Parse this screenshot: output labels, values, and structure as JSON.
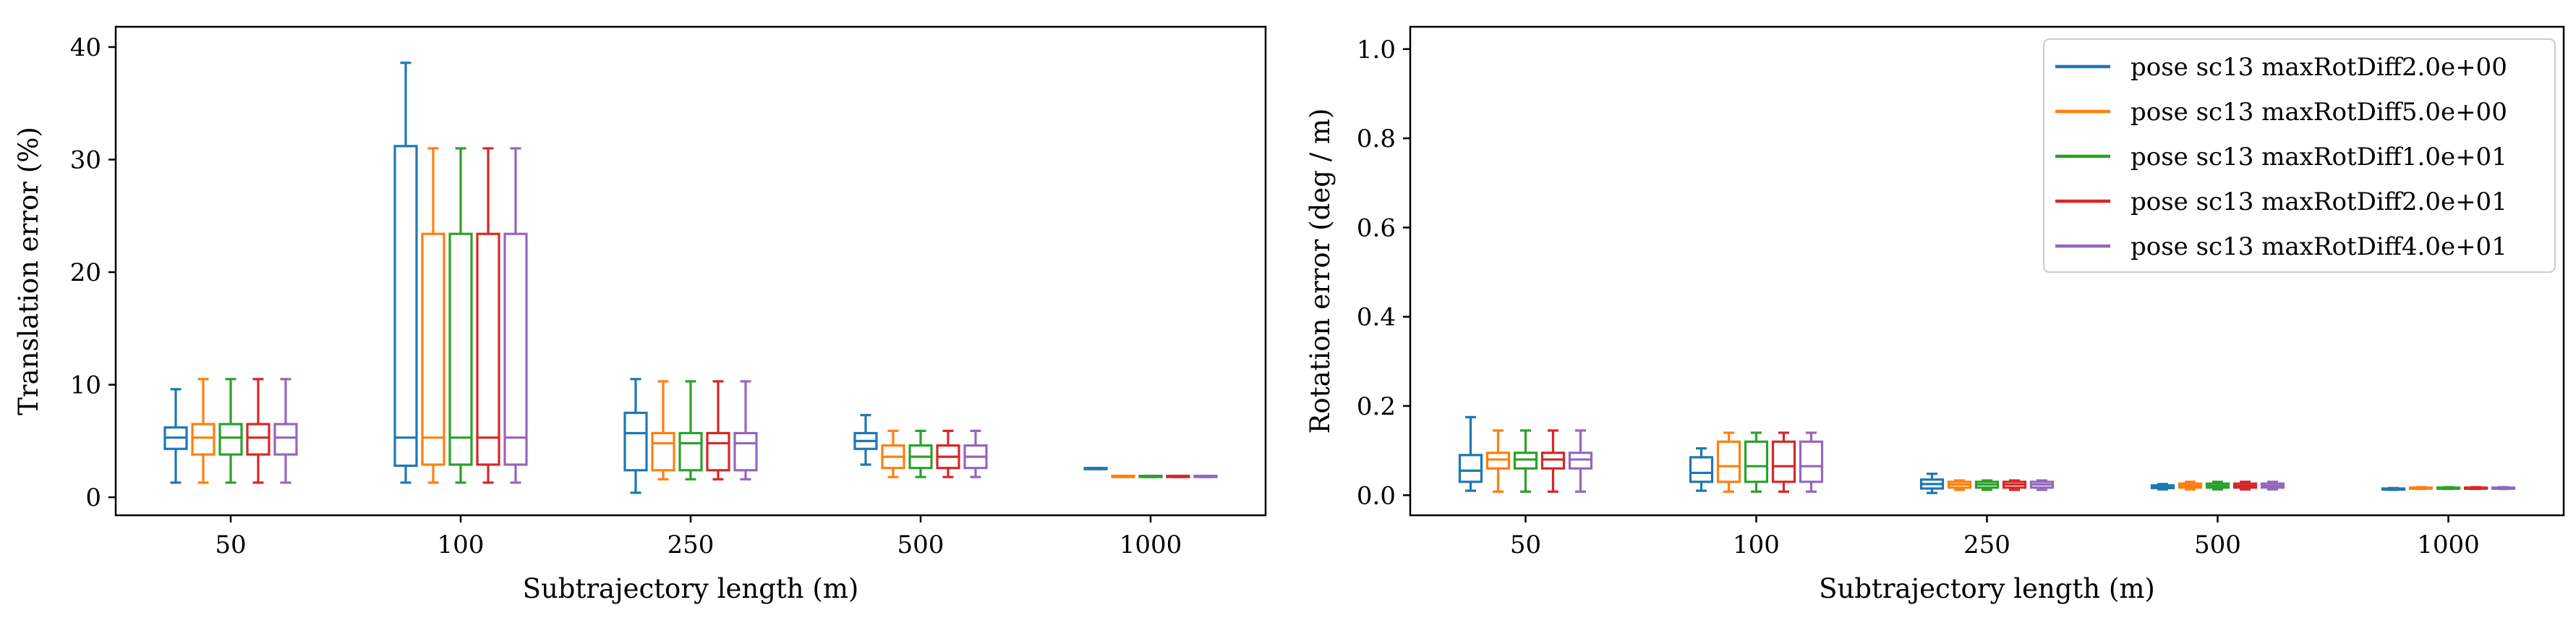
{
  "chart_data": [
    {
      "type": "box",
      "xlabel": "Subtrajectory length (m)",
      "ylabel": "Translation error (%)",
      "ylim": [
        -1.6,
        41.8
      ],
      "yticks": [
        0,
        10,
        20,
        30,
        40
      ],
      "categories": [
        "50",
        "100",
        "250",
        "500",
        "1000"
      ],
      "grid": false,
      "series": [
        {
          "name": "pose sc13 maxRotDiff2.0e+00",
          "color": "#1f77b4",
          "boxes": [
            {
              "whislo": 1.3,
              "q1": 4.3,
              "med": 5.3,
              "q3": 6.2,
              "whishi": 9.6
            },
            {
              "whislo": 1.3,
              "q1": 2.8,
              "med": 5.3,
              "q3": 31.2,
              "whishi": 38.6
            },
            {
              "whislo": 0.4,
              "q1": 2.4,
              "med": 5.7,
              "q3": 7.5,
              "whishi": 10.5
            },
            {
              "whislo": 2.9,
              "q1": 4.3,
              "med": 5.0,
              "q3": 5.7,
              "whishi": 7.3
            },
            {
              "whislo": 2.5,
              "q1": 2.5,
              "med": 2.55,
              "q3": 2.6,
              "whishi": 2.6
            }
          ]
        },
        {
          "name": "pose sc13 maxRotDiff5.0e+00",
          "color": "#ff7f0e",
          "boxes": [
            {
              "whislo": 1.3,
              "q1": 3.8,
              "med": 5.3,
              "q3": 6.5,
              "whishi": 10.5
            },
            {
              "whislo": 1.3,
              "q1": 2.9,
              "med": 5.3,
              "q3": 23.4,
              "whishi": 31.0
            },
            {
              "whislo": 1.6,
              "q1": 2.4,
              "med": 4.8,
              "q3": 5.7,
              "whishi": 10.3
            },
            {
              "whislo": 1.8,
              "q1": 2.6,
              "med": 3.6,
              "q3": 4.6,
              "whishi": 5.9
            },
            {
              "whislo": 1.8,
              "q1": 1.8,
              "med": 1.85,
              "q3": 1.9,
              "whishi": 1.9
            }
          ]
        },
        {
          "name": "pose sc13 maxRotDiff1.0e+01",
          "color": "#2ca02c",
          "boxes": [
            {
              "whislo": 1.3,
              "q1": 3.8,
              "med": 5.3,
              "q3": 6.5,
              "whishi": 10.5
            },
            {
              "whislo": 1.3,
              "q1": 2.9,
              "med": 5.3,
              "q3": 23.4,
              "whishi": 31.0
            },
            {
              "whislo": 1.6,
              "q1": 2.4,
              "med": 4.8,
              "q3": 5.7,
              "whishi": 10.3
            },
            {
              "whislo": 1.8,
              "q1": 2.6,
              "med": 3.6,
              "q3": 4.6,
              "whishi": 5.9
            },
            {
              "whislo": 1.8,
              "q1": 1.8,
              "med": 1.85,
              "q3": 1.9,
              "whishi": 1.9
            }
          ]
        },
        {
          "name": "pose sc13 maxRotDiff2.0e+01",
          "color": "#d62728",
          "boxes": [
            {
              "whislo": 1.3,
              "q1": 3.8,
              "med": 5.3,
              "q3": 6.5,
              "whishi": 10.5
            },
            {
              "whislo": 1.3,
              "q1": 2.9,
              "med": 5.3,
              "q3": 23.4,
              "whishi": 31.0
            },
            {
              "whislo": 1.6,
              "q1": 2.4,
              "med": 4.8,
              "q3": 5.7,
              "whishi": 10.3
            },
            {
              "whislo": 1.8,
              "q1": 2.6,
              "med": 3.6,
              "q3": 4.6,
              "whishi": 5.9
            },
            {
              "whislo": 1.8,
              "q1": 1.8,
              "med": 1.85,
              "q3": 1.9,
              "whishi": 1.9
            }
          ]
        },
        {
          "name": "pose sc13 maxRotDiff4.0e+01",
          "color": "#9467bd",
          "boxes": [
            {
              "whislo": 1.3,
              "q1": 3.8,
              "med": 5.3,
              "q3": 6.5,
              "whishi": 10.5
            },
            {
              "whislo": 1.3,
              "q1": 2.9,
              "med": 5.3,
              "q3": 23.4,
              "whishi": 31.0
            },
            {
              "whislo": 1.6,
              "q1": 2.4,
              "med": 4.8,
              "q3": 5.7,
              "whishi": 10.3
            },
            {
              "whislo": 1.8,
              "q1": 2.6,
              "med": 3.6,
              "q3": 4.6,
              "whishi": 5.9
            },
            {
              "whislo": 1.8,
              "q1": 1.8,
              "med": 1.85,
              "q3": 1.9,
              "whishi": 1.9
            }
          ]
        }
      ]
    },
    {
      "type": "box",
      "xlabel": "Subtrajectory length (m)",
      "ylabel": "Rotation error (deg / m)",
      "ylim": [
        -0.045,
        1.05
      ],
      "yticks": [
        "0.0",
        "0.2",
        "0.4",
        "0.6",
        "0.8",
        "1.0"
      ],
      "categories": [
        "50",
        "100",
        "250",
        "500",
        "1000"
      ],
      "grid": false,
      "legend": "top-right",
      "series": [
        {
          "name": "pose sc13 maxRotDiff2.0e+00",
          "color": "#1f77b4",
          "boxes": [
            {
              "whislo": 0.01,
              "q1": 0.03,
              "med": 0.055,
              "q3": 0.09,
              "whishi": 0.175
            },
            {
              "whislo": 0.01,
              "q1": 0.03,
              "med": 0.05,
              "q3": 0.085,
              "whishi": 0.105
            },
            {
              "whislo": 0.005,
              "q1": 0.015,
              "med": 0.025,
              "q3": 0.035,
              "whishi": 0.048
            },
            {
              "whislo": 0.013,
              "q1": 0.016,
              "med": 0.019,
              "q3": 0.022,
              "whishi": 0.025
            },
            {
              "whislo": 0.012,
              "q1": 0.013,
              "med": 0.014,
              "q3": 0.015,
              "whishi": 0.016
            }
          ]
        },
        {
          "name": "pose sc13 maxRotDiff5.0e+00",
          "color": "#ff7f0e",
          "boxes": [
            {
              "whislo": 0.008,
              "q1": 0.06,
              "med": 0.08,
              "q3": 0.095,
              "whishi": 0.145
            },
            {
              "whislo": 0.008,
              "q1": 0.03,
              "med": 0.065,
              "q3": 0.12,
              "whishi": 0.14
            },
            {
              "whislo": 0.012,
              "q1": 0.017,
              "med": 0.024,
              "q3": 0.03,
              "whishi": 0.033
            },
            {
              "whislo": 0.013,
              "q1": 0.017,
              "med": 0.021,
              "q3": 0.026,
              "whishi": 0.03
            },
            {
              "whislo": 0.014,
              "q1": 0.015,
              "med": 0.016,
              "q3": 0.017,
              "whishi": 0.018
            }
          ]
        },
        {
          "name": "pose sc13 maxRotDiff1.0e+01",
          "color": "#2ca02c",
          "boxes": [
            {
              "whislo": 0.008,
              "q1": 0.06,
              "med": 0.08,
              "q3": 0.095,
              "whishi": 0.145
            },
            {
              "whislo": 0.008,
              "q1": 0.03,
              "med": 0.065,
              "q3": 0.12,
              "whishi": 0.14
            },
            {
              "whislo": 0.012,
              "q1": 0.017,
              "med": 0.024,
              "q3": 0.03,
              "whishi": 0.033
            },
            {
              "whislo": 0.013,
              "q1": 0.017,
              "med": 0.021,
              "q3": 0.026,
              "whishi": 0.03
            },
            {
              "whislo": 0.014,
              "q1": 0.015,
              "med": 0.016,
              "q3": 0.017,
              "whishi": 0.018
            }
          ]
        },
        {
          "name": "pose sc13 maxRotDiff2.0e+01",
          "color": "#d62728",
          "boxes": [
            {
              "whislo": 0.008,
              "q1": 0.06,
              "med": 0.08,
              "q3": 0.095,
              "whishi": 0.145
            },
            {
              "whislo": 0.008,
              "q1": 0.03,
              "med": 0.065,
              "q3": 0.12,
              "whishi": 0.14
            },
            {
              "whislo": 0.012,
              "q1": 0.017,
              "med": 0.024,
              "q3": 0.03,
              "whishi": 0.033
            },
            {
              "whislo": 0.013,
              "q1": 0.017,
              "med": 0.021,
              "q3": 0.026,
              "whishi": 0.03
            },
            {
              "whislo": 0.014,
              "q1": 0.015,
              "med": 0.016,
              "q3": 0.017,
              "whishi": 0.018
            }
          ]
        },
        {
          "name": "pose sc13 maxRotDiff4.0e+01",
          "color": "#9467bd",
          "boxes": [
            {
              "whislo": 0.008,
              "q1": 0.06,
              "med": 0.08,
              "q3": 0.095,
              "whishi": 0.145
            },
            {
              "whislo": 0.008,
              "q1": 0.03,
              "med": 0.065,
              "q3": 0.12,
              "whishi": 0.14
            },
            {
              "whislo": 0.012,
              "q1": 0.017,
              "med": 0.024,
              "q3": 0.03,
              "whishi": 0.033
            },
            {
              "whislo": 0.013,
              "q1": 0.017,
              "med": 0.021,
              "q3": 0.026,
              "whishi": 0.03
            },
            {
              "whislo": 0.014,
              "q1": 0.015,
              "med": 0.016,
              "q3": 0.017,
              "whishi": 0.018
            }
          ]
        }
      ]
    }
  ]
}
